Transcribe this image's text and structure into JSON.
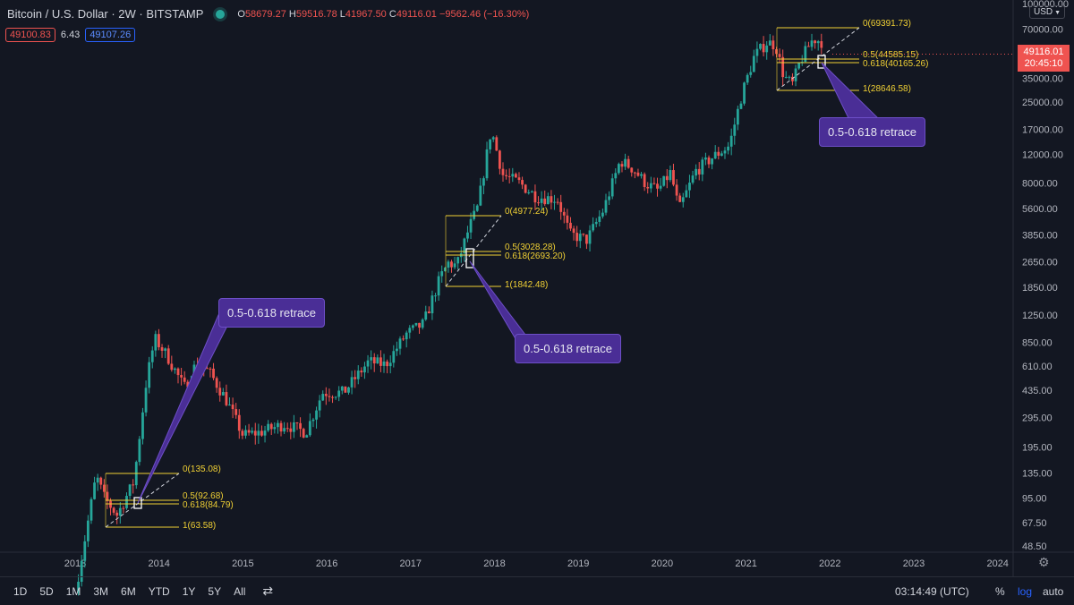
{
  "header": {
    "title": "Bitcoin / U.S. Dollar",
    "interval": "2W",
    "exchange": "BITSTAMP",
    "open_label": "O",
    "open": "58679.27",
    "high_label": "H",
    "high": "59516.78",
    "low_label": "L",
    "low": "41967.50",
    "close_label": "C",
    "close": "49116.01",
    "change": "−9562.46 (−16.30%)"
  },
  "price_boxes": {
    "sell": "49100.83",
    "spread": "6.43",
    "buy": "49107.26"
  },
  "currency": "USD",
  "last_price": {
    "value": "49116.01",
    "countdown": "20:45:10"
  },
  "bottom_bar": {
    "ranges": [
      "1D",
      "5D",
      "1M",
      "3M",
      "6M",
      "YTD",
      "1Y",
      "5Y",
      "All"
    ],
    "clock": "03:14:49 (UTC)",
    "percent": "%",
    "log": "log",
    "auto": "auto"
  },
  "callouts": [
    "0.5-0.618 retrace",
    "0.5-0.618 retrace",
    "0.5-0.618 retrace"
  ],
  "colors": {
    "up": "#26a69a",
    "down": "#ef5350",
    "fib": "#f0d034",
    "callout": "#4a2e96",
    "bg": "#131722"
  },
  "chart_data": {
    "type": "candlestick",
    "log_scale": true,
    "y_ticks": [
      "100000.00",
      "70000.00",
      "50000.00",
      "35000.00",
      "25000.00",
      "17000.00",
      "12000.00",
      "8000.00",
      "5600.00",
      "3850.00",
      "2650.00",
      "1850.00",
      "1250.00",
      "850.00",
      "610.00",
      "435.00",
      "295.00",
      "195.00",
      "135.00",
      "95.00",
      "67.50",
      "48.50"
    ],
    "x_ticks": [
      "2013",
      "2014",
      "2015",
      "2016",
      "2017",
      "2018",
      "2019",
      "2020",
      "2021",
      "2022",
      "2023",
      "2024"
    ],
    "fib_levels": [
      {
        "labels": [
          "0(135.08)",
          "0.5(92.68)",
          "0.618(84.79)",
          "1(63.58)"
        ]
      },
      {
        "labels": [
          "0(4977.24)",
          "0.5(3028.28)",
          "0.618(2693.20)",
          "1(1842.48)"
        ]
      },
      {
        "labels": [
          "0(69391.73)",
          "0.5(44585.15)",
          "0.618(40165.26)",
          "1(28646.58)"
        ]
      }
    ],
    "path": [
      [
        2013.0,
        25
      ],
      [
        2013.25,
        130
      ],
      [
        2013.35,
        95
      ],
      [
        2013.5,
        75
      ],
      [
        2013.7,
        120
      ],
      [
        2013.85,
        500
      ],
      [
        2013.95,
        900
      ],
      [
        2014.1,
        700
      ],
      [
        2014.3,
        450
      ],
      [
        2014.45,
        640
      ],
      [
        2014.6,
        560
      ],
      [
        2014.8,
        380
      ],
      [
        2015.0,
        230
      ],
      [
        2015.2,
        240
      ],
      [
        2015.5,
        270
      ],
      [
        2015.75,
        240
      ],
      [
        2015.95,
        420
      ],
      [
        2016.2,
        420
      ],
      [
        2016.5,
        650
      ],
      [
        2016.7,
        620
      ],
      [
        2016.95,
        960
      ],
      [
        2017.15,
        1100
      ],
      [
        2017.35,
        2100
      ],
      [
        2017.45,
        2600
      ],
      [
        2017.55,
        2500
      ],
      [
        2017.7,
        4300
      ],
      [
        2017.8,
        5700
      ],
      [
        2017.96,
        17000
      ],
      [
        2018.1,
        9000
      ],
      [
        2018.3,
        8000
      ],
      [
        2018.5,
        6600
      ],
      [
        2018.75,
        6400
      ],
      [
        2018.9,
        3900
      ],
      [
        2019.1,
        3600
      ],
      [
        2019.3,
        5500
      ],
      [
        2019.5,
        11000
      ],
      [
        2019.65,
        9800
      ],
      [
        2019.8,
        8000
      ],
      [
        2019.95,
        7200
      ],
      [
        2020.1,
        9300
      ],
      [
        2020.2,
        5500
      ],
      [
        2020.4,
        9500
      ],
      [
        2020.6,
        11500
      ],
      [
        2020.8,
        13500
      ],
      [
        2020.95,
        28000
      ],
      [
        2021.1,
        48000
      ],
      [
        2021.25,
        58000
      ],
      [
        2021.35,
        56000
      ],
      [
        2021.45,
        36000
      ],
      [
        2021.55,
        32000
      ],
      [
        2021.65,
        45000
      ],
      [
        2021.8,
        61000
      ],
      [
        2021.9,
        58679
      ],
      [
        2021.93,
        49116
      ]
    ]
  }
}
